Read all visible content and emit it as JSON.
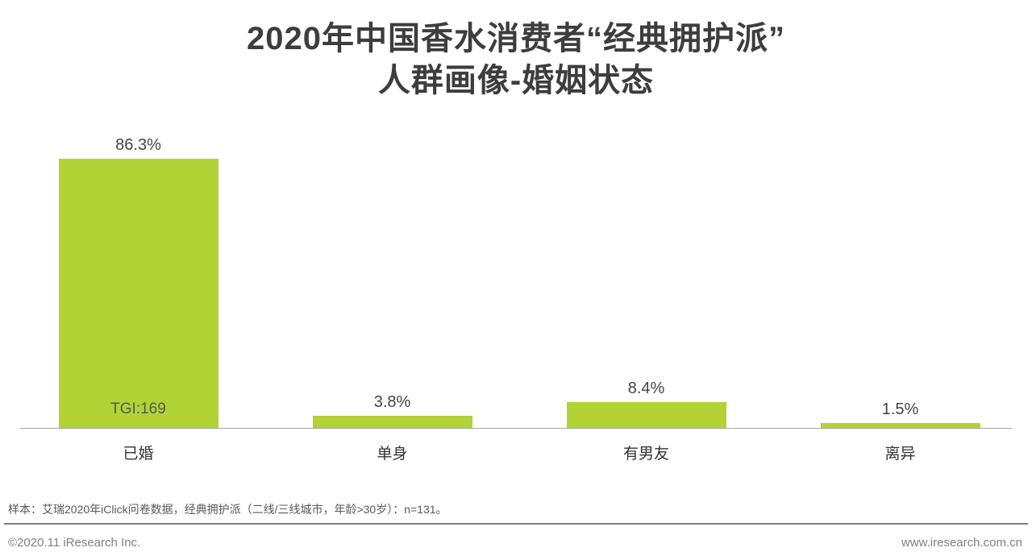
{
  "page": {
    "title_line1": "2020年中国香水消费者“经典拥护派”",
    "title_line2": "人群画像-婚姻状态",
    "sample_note": "样本：艾瑞2020年iClick问卷数据，经典拥护派（二线/三线城市，年龄>30岁）：n=131。",
    "footer_left": "©2020.11 iResearch Inc.",
    "footer_right": "www.iresearch.com.cn"
  },
  "chart_data": {
    "type": "bar",
    "title": "2020年中国香水消费者“经典拥护派”人群画像-婚姻状态",
    "categories": [
      "已婚",
      "单身",
      "有男友",
      "离异"
    ],
    "values": [
      86.3,
      3.8,
      8.4,
      1.5
    ],
    "value_labels": [
      "86.3%",
      "3.8%",
      "8.4%",
      "1.5%"
    ],
    "bar_annotations": [
      "TGI:169",
      "",
      "",
      ""
    ],
    "bar_color": "#b2d335",
    "text_color": "#444444",
    "axis_color": "#a6a6a6",
    "xlabel": "",
    "ylabel": "",
    "ylim": [
      0,
      100
    ],
    "grid": false,
    "legend": false
  }
}
